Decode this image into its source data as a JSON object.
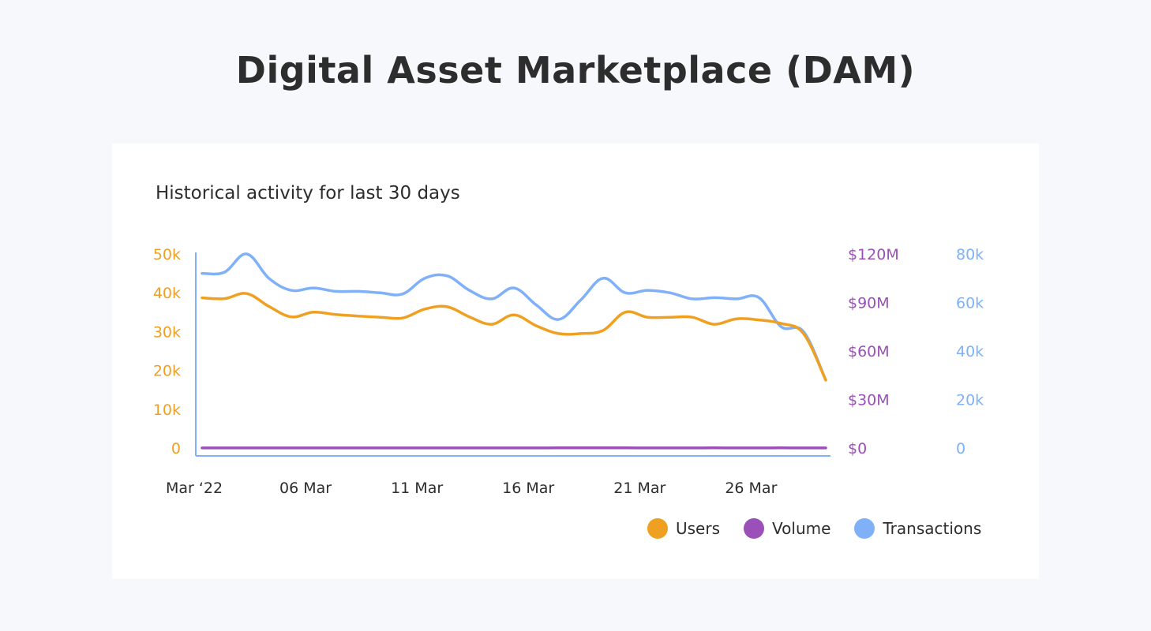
{
  "page_title": "Digital Asset Marketplace (DAM)",
  "chart_data": {
    "type": "line",
    "title": "Historical activity for last 30 days",
    "x_tick_labels": [
      "Mar ‘22",
      "06 Mar",
      "11 Mar",
      "16 Mar",
      "21 Mar",
      "26 Mar"
    ],
    "x": [
      "2022-03-01",
      "2022-03-02",
      "2022-03-03",
      "2022-03-04",
      "2022-03-05",
      "2022-03-06",
      "2022-03-07",
      "2022-03-08",
      "2022-03-09",
      "2022-03-10",
      "2022-03-11",
      "2022-03-12",
      "2022-03-13",
      "2022-03-14",
      "2022-03-15",
      "2022-03-16",
      "2022-03-17",
      "2022-03-18",
      "2022-03-19",
      "2022-03-20",
      "2022-03-21",
      "2022-03-22",
      "2022-03-23",
      "2022-03-24",
      "2022-03-25",
      "2022-03-26",
      "2022-03-27",
      "2022-03-28",
      "2022-03-29"
    ],
    "axes": {
      "left": {
        "color": "#f0a020",
        "ticks": [
          "0",
          "10k",
          "20k",
          "30k",
          "40k",
          "50k"
        ],
        "range": [
          0,
          50000
        ]
      },
      "right1": {
        "color": "#9b4fb8",
        "ticks": [
          "$0",
          "$30M",
          "$60M",
          "$90M",
          "$120M"
        ],
        "range": [
          0,
          120000000
        ]
      },
      "right2": {
        "color": "#7fb0f8",
        "ticks": [
          "0",
          "20k",
          "40k",
          "60k",
          "80k"
        ],
        "range": [
          0,
          80000
        ]
      }
    },
    "series": [
      {
        "name": "Users",
        "color": "#f0a020",
        "axis": "left",
        "values": [
          38700,
          38500,
          39800,
          36500,
          33800,
          35000,
          34400,
          34000,
          33700,
          33500,
          35800,
          36400,
          33800,
          31900,
          34300,
          31500,
          29500,
          29500,
          30300,
          35000,
          33700,
          33700,
          33700,
          31900,
          33300,
          33000,
          32100,
          29500,
          17500
        ]
      },
      {
        "name": "Volume",
        "color": "#9b4fb8",
        "axis": "right1",
        "values": [
          54000,
          60000,
          61000,
          62000,
          50000,
          44000,
          42000,
          48000,
          44000,
          50000,
          62000,
          56000,
          58000,
          40000,
          50000,
          55000,
          115000,
          102000,
          100000,
          75000,
          60000,
          55000,
          60000,
          76000,
          68000,
          67000,
          95000,
          55000,
          30000
        ]
      },
      {
        "name": "Transactions",
        "color": "#7fb0f8",
        "axis": "right2",
        "values": [
          72000,
          72500,
          80000,
          70000,
          65000,
          66000,
          64600,
          64600,
          64000,
          63500,
          70000,
          71000,
          65000,
          61500,
          66000,
          59000,
          53000,
          61000,
          70000,
          64000,
          65000,
          64000,
          61500,
          62000,
          61500,
          62000,
          50000,
          48000,
          28000
        ]
      }
    ],
    "legend": [
      "Users",
      "Volume",
      "Transactions"
    ],
    "legend_position": "bottom-right",
    "grid": false
  }
}
